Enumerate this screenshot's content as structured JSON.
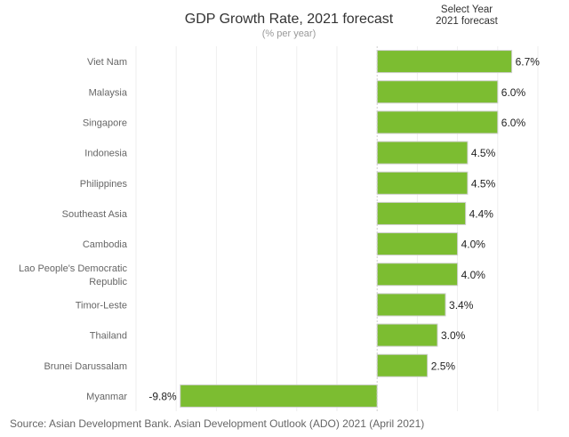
{
  "header": {
    "title": "GDP Growth Rate, 2021 forecast",
    "subtitle": "(% per year)"
  },
  "selector": {
    "label": "Select Year",
    "value": "2021 forecast"
  },
  "footer": {
    "source": "Source: Asian Development Bank. Asian Development Outlook (ADO) 2021 (April 2021)"
  },
  "colors": {
    "bar": "#7cbd31",
    "bar_border": "#cfcfcf",
    "grid": "#eeeeee",
    "zero_line": "#cccccc"
  },
  "chart_data": {
    "type": "bar",
    "orientation": "horizontal",
    "title": "GDP Growth Rate, 2021 forecast",
    "subtitle": "(% per year)",
    "xlabel": "",
    "ylabel": "",
    "xlim": [
      -12,
      9
    ],
    "grid_step": 2,
    "grid": true,
    "legend": "none",
    "value_suffix": "%",
    "categories": [
      [
        "Viet Nam"
      ],
      [
        "Malaysia"
      ],
      [
        "Singapore"
      ],
      [
        "Indonesia"
      ],
      [
        "Philippines"
      ],
      [
        "Southeast Asia"
      ],
      [
        "Cambodia"
      ],
      [
        "Lao People's Democratic",
        "Republic"
      ],
      [
        "Timor-Leste"
      ],
      [
        "Thailand"
      ],
      [
        "Brunei Darussalam"
      ],
      [
        "Myanmar"
      ]
    ],
    "values": [
      6.7,
      6.0,
      6.0,
      4.5,
      4.5,
      4.4,
      4.0,
      4.0,
      3.4,
      3.0,
      2.5,
      -9.8
    ],
    "labels": [
      "6.7%",
      "6.0%",
      "6.0%",
      "4.5%",
      "4.5%",
      "4.4%",
      "4.0%",
      "4.0%",
      "3.4%",
      "3.0%",
      "2.5%",
      "-9.8%"
    ]
  }
}
